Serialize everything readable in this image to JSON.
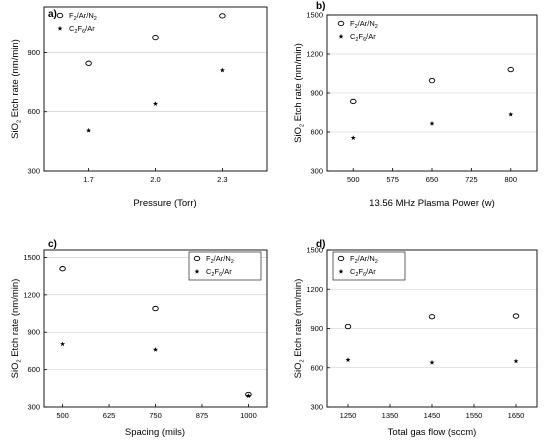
{
  "chart_data": [
    {
      "type": "scatter",
      "panel_label": "a)",
      "xlabel": "Pressure (Torr)",
      "ylabel": {
        "pre": "SiO",
        "sub": "2",
        "post": " Etch rate (nm/min)"
      },
      "x_ticks": [
        "1.7",
        "2.0",
        "2.3"
      ],
      "x_tick_values": [
        1.7,
        2.0,
        2.3
      ],
      "xlim": [
        1.5,
        2.5
      ],
      "y_ticks": [
        "300",
        "600",
        "900"
      ],
      "y_tick_values": [
        300,
        600,
        900
      ],
      "ylim": [
        300,
        1130
      ],
      "grid": "horizontal",
      "legend": {
        "placement": "top-left",
        "boxed": false
      },
      "series": [
        {
          "name": "F2/Ar/N2",
          "label_parts": [
            [
              "F",
              ""
            ],
            [
              "2",
              "sub"
            ],
            [
              "/Ar/N",
              ""
            ],
            [
              "2",
              "sub"
            ]
          ],
          "marker": "circle",
          "points": [
            [
              1.7,
              845
            ],
            [
              2.0,
              975
            ],
            [
              2.3,
              1085
            ]
          ]
        },
        {
          "name": "C2F6/Ar",
          "label_parts": [
            [
              "C",
              ""
            ],
            [
              "2",
              "sub"
            ],
            [
              "F",
              ""
            ],
            [
              "6",
              "sub"
            ],
            [
              "/Ar",
              ""
            ]
          ],
          "marker": "star",
          "points": [
            [
              1.7,
              505
            ],
            [
              2.0,
              640
            ],
            [
              2.3,
              810
            ]
          ]
        }
      ]
    },
    {
      "type": "scatter",
      "panel_label": "b)",
      "xlabel": "13.56 MHz Plasma Power (w)",
      "ylabel": {
        "pre": "SiO",
        "sub": "2",
        "post": " Etch rate (nm/min)"
      },
      "x_ticks": [
        "500",
        "575",
        "650",
        "725",
        "800"
      ],
      "x_tick_values": [
        500,
        575,
        650,
        725,
        800
      ],
      "xlim": [
        450,
        850
      ],
      "y_ticks": [
        "300",
        "600",
        "900",
        "1200",
        "1500"
      ],
      "y_tick_values": [
        300,
        600,
        900,
        1200,
        1500
      ],
      "ylim": [
        300,
        1500
      ],
      "grid": "horizontal",
      "legend": {
        "placement": "top-left",
        "boxed": false
      },
      "series": [
        {
          "name": "F2/Ar/N2",
          "label_parts": [
            [
              "F",
              ""
            ],
            [
              "2",
              "sub"
            ],
            [
              "/Ar/N",
              ""
            ],
            [
              "2",
              "sub"
            ]
          ],
          "marker": "circle",
          "points": [
            [
              500,
              835
            ],
            [
              650,
              995
            ],
            [
              800,
              1080
            ]
          ]
        },
        {
          "name": "C2F6/Ar",
          "label_parts": [
            [
              "C",
              ""
            ],
            [
              "2",
              "sub"
            ],
            [
              "F",
              ""
            ],
            [
              "6",
              "sub"
            ],
            [
              "/Ar",
              ""
            ]
          ],
          "marker": "star",
          "points": [
            [
              500,
              555
            ],
            [
              650,
              665
            ],
            [
              800,
              735
            ]
          ]
        }
      ]
    },
    {
      "type": "scatter",
      "panel_label": "c)",
      "xlabel": "Spacing (mils)",
      "ylabel": {
        "pre": "SiO",
        "sub": "2",
        "post": " Etch rate (nm/min)"
      },
      "x_ticks": [
        "500",
        "625",
        "750",
        "875",
        "1000"
      ],
      "x_tick_values": [
        500,
        625,
        750,
        875,
        1000
      ],
      "xlim": [
        450,
        1050
      ],
      "y_ticks": [
        "300",
        "600",
        "900",
        "1200",
        "1500"
      ],
      "y_tick_values": [
        300,
        600,
        900,
        1200,
        1500
      ],
      "ylim": [
        300,
        1560
      ],
      "grid": "horizontal",
      "legend": {
        "placement": "top-right",
        "boxed": true
      },
      "series": [
        {
          "name": "F2/Ar/N2",
          "label_parts": [
            [
              "F",
              ""
            ],
            [
              "2",
              "sub"
            ],
            [
              "/Ar/N",
              ""
            ],
            [
              "2",
              "sub"
            ]
          ],
          "marker": "circle",
          "points": [
            [
              500,
              1410
            ],
            [
              750,
              1090
            ],
            [
              1000,
              400
            ]
          ]
        },
        {
          "name": "C2F6/Ar",
          "label_parts": [
            [
              "C",
              ""
            ],
            [
              "2",
              "sub"
            ],
            [
              "F",
              ""
            ],
            [
              "6",
              "sub"
            ],
            [
              "/Ar",
              ""
            ]
          ],
          "marker": "star",
          "points": [
            [
              500,
              805
            ],
            [
              750,
              760
            ],
            [
              1000,
              390
            ]
          ]
        }
      ]
    },
    {
      "type": "scatter",
      "panel_label": "d)",
      "xlabel": "Total gas flow (sccm)",
      "ylabel": {
        "pre": "SiO",
        "sub": "2",
        "post": " Etch rate (nm/min)"
      },
      "x_ticks": [
        "1250",
        "1350",
        "1450",
        "1550",
        "1650"
      ],
      "x_tick_values": [
        1250,
        1350,
        1450,
        1550,
        1650
      ],
      "xlim": [
        1200,
        1700
      ],
      "y_ticks": [
        "300",
        "600",
        "900",
        "1200",
        "1500"
      ],
      "y_tick_values": [
        300,
        600,
        900,
        1200,
        1500
      ],
      "ylim": [
        300,
        1500
      ],
      "grid": "horizontal",
      "legend": {
        "placement": "top-left",
        "boxed": true
      },
      "series": [
        {
          "name": "F2/Ar/N2",
          "label_parts": [
            [
              "F",
              ""
            ],
            [
              "2",
              "sub"
            ],
            [
              "/Ar/N",
              ""
            ],
            [
              "2",
              "sub"
            ]
          ],
          "marker": "circle",
          "points": [
            [
              1250,
              915
            ],
            [
              1450,
              990
            ],
            [
              1650,
              995
            ]
          ]
        },
        {
          "name": "C2F6/Ar",
          "label_parts": [
            [
              "C",
              ""
            ],
            [
              "2",
              "sub"
            ],
            [
              "F",
              ""
            ],
            [
              "6",
              "sub"
            ],
            [
              "/Ar",
              ""
            ]
          ],
          "marker": "star",
          "points": [
            [
              1250,
              660
            ],
            [
              1450,
              640
            ],
            [
              1650,
              650
            ]
          ]
        }
      ]
    }
  ]
}
